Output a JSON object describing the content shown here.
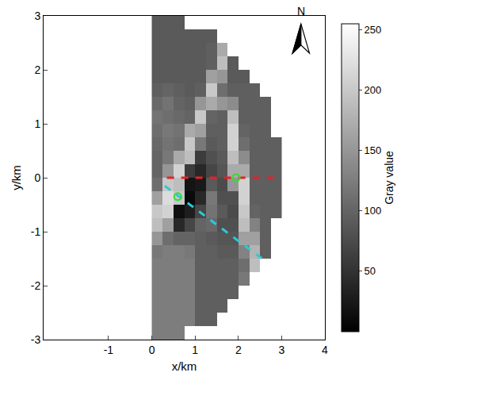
{
  "chart_data": {
    "type": "heatmap",
    "x_label": "x/km",
    "y_label": "y/km",
    "xlim": [
      -2.5,
      4
    ],
    "xticks": [
      -1,
      0,
      1,
      2,
      3,
      4
    ],
    "ylim": [
      -3,
      3
    ],
    "yticks": [
      -3,
      -2,
      -1,
      0,
      1,
      2,
      3
    ],
    "grid": false,
    "colorbar_title": "Gray value",
    "zlim": [
      0,
      255
    ],
    "zticks": [
      50,
      100,
      150,
      200,
      250
    ],
    "north_label": "N",
    "x": [
      0.125,
      0.375,
      0.625,
      0.875,
      1.125,
      1.375,
      1.625,
      1.875,
      2.125,
      2.375,
      2.625,
      2.875
    ],
    "y": [
      -2.875,
      -2.625,
      -2.375,
      -2.125,
      -1.875,
      -1.625,
      -1.375,
      -1.125,
      -0.875,
      -0.625,
      -0.375,
      -0.125,
      0.125,
      0.375,
      0.625,
      0.875,
      1.125,
      1.375,
      1.625,
      1.875,
      2.125,
      2.375,
      2.625,
      2.875
    ],
    "z": [
      [
        125,
        125,
        125,
        null,
        null,
        null,
        null,
        null,
        null,
        null,
        null,
        null
      ],
      [
        125,
        125,
        125,
        125,
        95,
        95,
        null,
        null,
        null,
        null,
        null,
        null
      ],
      [
        125,
        125,
        125,
        125,
        95,
        95,
        95,
        null,
        null,
        null,
        null,
        null
      ],
      [
        125,
        125,
        125,
        125,
        95,
        95,
        95,
        95,
        null,
        null,
        null,
        null
      ],
      [
        125,
        125,
        125,
        125,
        95,
        95,
        95,
        95,
        120,
        null,
        null,
        null
      ],
      [
        125,
        125,
        125,
        125,
        95,
        95,
        95,
        95,
        110,
        190,
        null,
        null
      ],
      [
        120,
        125,
        125,
        120,
        95,
        95,
        90,
        90,
        130,
        180,
        95,
        null
      ],
      [
        150,
        110,
        100,
        100,
        95,
        90,
        85,
        85,
        160,
        160,
        95,
        null
      ],
      [
        190,
        160,
        40,
        70,
        100,
        105,
        80,
        80,
        190,
        130,
        95,
        null
      ],
      [
        200,
        210,
        15,
        30,
        70,
        115,
        90,
        75,
        200,
        100,
        95,
        95
      ],
      [
        160,
        220,
        200,
        10,
        40,
        120,
        80,
        80,
        210,
        95,
        95,
        95
      ],
      [
        110,
        200,
        190,
        20,
        25,
        90,
        75,
        150,
        210,
        95,
        95,
        95
      ],
      [
        100,
        150,
        210,
        60,
        40,
        70,
        85,
        170,
        170,
        95,
        95,
        95
      ],
      [
        100,
        120,
        170,
        190,
        60,
        80,
        90,
        190,
        140,
        95,
        95,
        95
      ],
      [
        105,
        115,
        110,
        200,
        120,
        90,
        95,
        210,
        110,
        95,
        95,
        95
      ],
      [
        110,
        120,
        115,
        170,
        160,
        95,
        95,
        210,
        100,
        95,
        95,
        null
      ],
      [
        115,
        110,
        105,
        100,
        200,
        100,
        95,
        190,
        95,
        95,
        95,
        null
      ],
      [
        105,
        115,
        100,
        95,
        150,
        170,
        150,
        140,
        95,
        95,
        95,
        null
      ],
      [
        95,
        100,
        95,
        90,
        95,
        200,
        110,
        95,
        95,
        95,
        null,
        null
      ],
      [
        90,
        90,
        90,
        90,
        90,
        160,
        150,
        90,
        90,
        null,
        null,
        null
      ],
      [
        90,
        90,
        90,
        90,
        90,
        95,
        190,
        90,
        null,
        null,
        null,
        null
      ],
      [
        90,
        90,
        90,
        90,
        90,
        95,
        170,
        null,
        null,
        null,
        null,
        null
      ],
      [
        90,
        90,
        90,
        90,
        90,
        90,
        null,
        null,
        null,
        null,
        null,
        null
      ],
      [
        90,
        90,
        90,
        null,
        null,
        null,
        null,
        null,
        null,
        null,
        null,
        null
      ]
    ],
    "series": [
      {
        "type": "line",
        "color": "#e8202a",
        "line_style": "dash",
        "x": [
          0.35,
          2.95
        ],
        "y": [
          0,
          0
        ]
      },
      {
        "type": "line",
        "color": "#2ec8d8",
        "line_style": "dash",
        "x": [
          0.3,
          2.55
        ],
        "y": [
          -0.15,
          -1.5
        ]
      },
      {
        "type": "scatter",
        "color": "#33dd33",
        "marker": "circle-open",
        "x": [
          0.6,
          1.95
        ],
        "y": [
          -0.35,
          0
        ]
      }
    ]
  }
}
